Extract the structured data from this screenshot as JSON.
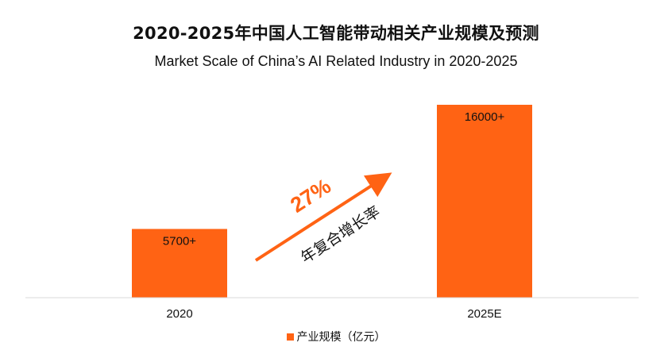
{
  "title": "2020-2025年中国人工智能带动相关产业规模及预测",
  "subtitle": "Market Scale of China’s AI Related Industry in 2020-2025",
  "colors": {
    "bar": "#FF6314",
    "axis": "#d9d9d9",
    "text": "#111111",
    "accent": "#FF6314"
  },
  "annotation": {
    "value": "27%",
    "label": "年复合增长率"
  },
  "chart_data": {
    "type": "bar",
    "categories": [
      "2020",
      "2025E"
    ],
    "series": [
      {
        "name": "产业规模（亿元）",
        "values": [
          5700,
          16000
        ]
      }
    ],
    "data_labels": [
      "5700+",
      "16000+"
    ],
    "legend_position": "bottom",
    "grid": false
  }
}
